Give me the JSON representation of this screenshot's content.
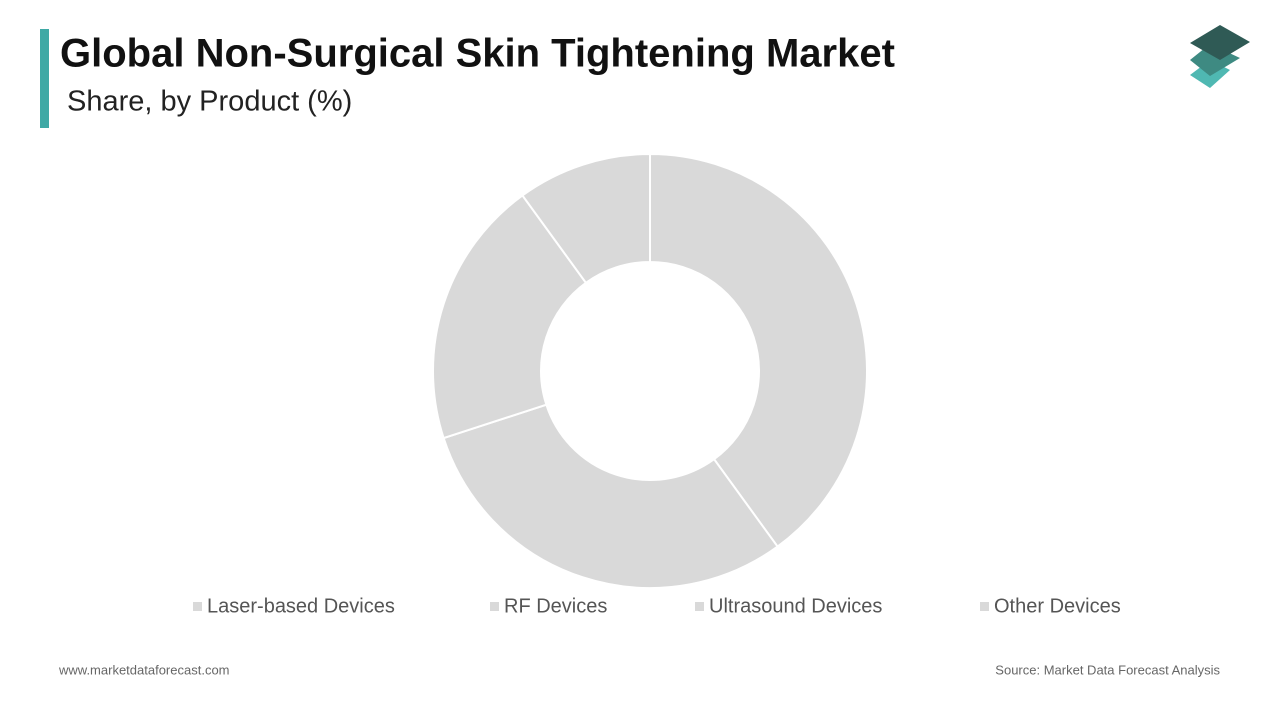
{
  "chart_data": {
    "type": "donut",
    "title": "Global Non-Surgical Skin Tightening Market",
    "subtitle": "Share, by Product (%)",
    "categories": [
      "Laser-based Devices",
      "RF Devices",
      "Ultrasound Devices",
      "Other Devices"
    ],
    "values": [
      40,
      30,
      20,
      10
    ],
    "colors": [
      "#d9d9d9",
      "#d9d9d9",
      "#d9d9d9",
      "#d9d9d9"
    ],
    "legend": "bottom"
  },
  "footer": {
    "website": "www.marketdataforecast.com",
    "source": "Source: Market Data Forecast Analysis"
  }
}
